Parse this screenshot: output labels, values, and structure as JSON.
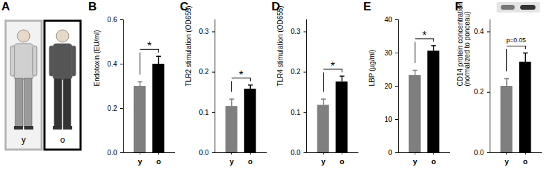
{
  "panel_a": {
    "title": "A",
    "labels": [
      "y",
      "o"
    ]
  },
  "chart_data": [
    {
      "type": "bar",
      "title": "B",
      "ylabel": "Endotoxin (EU/ml)",
      "categories": [
        "y",
        "o"
      ],
      "values": [
        0.3,
        0.4
      ],
      "errors": [
        0.02,
        0.035
      ],
      "colors": [
        "#7f7f7f",
        "#000000"
      ],
      "ylim": [
        0,
        0.6
      ],
      "yticks": [
        {
          "value": 0,
          "label": "0.0"
        },
        0.2,
        0.4,
        0.6
      ],
      "annotations": [
        "*"
      ]
    },
    {
      "type": "bar",
      "title": "C",
      "ylabel": "TLR2 stimulation (OD655)",
      "categories": [
        "y",
        "o"
      ],
      "values": [
        0.115,
        0.158
      ],
      "errors": [
        0.018,
        0.01
      ],
      "colors": [
        "#7f7f7f",
        "#000000"
      ],
      "ylim": [
        0,
        0.33
      ],
      "yticks": [
        {
          "value": 0,
          "label": "0.0"
        },
        0.1,
        0.2,
        0.3
      ],
      "annotations": [
        "*"
      ]
    },
    {
      "type": "bar",
      "title": "D",
      "ylabel": "TLR4 stimulation (OD655)",
      "categories": [
        "y",
        "o"
      ],
      "values": [
        0.118,
        0.176
      ],
      "errors": [
        0.015,
        0.014
      ],
      "colors": [
        "#7f7f7f",
        "#000000"
      ],
      "ylim": [
        0,
        0.33
      ],
      "yticks": [
        {
          "value": 0,
          "label": "0.0"
        },
        0.1,
        0.2,
        0.3
      ],
      "annotations": [
        "*"
      ]
    },
    {
      "type": "bar",
      "title": "E",
      "ylabel": "LBP (µg/ml)",
      "categories": [
        "y",
        "o"
      ],
      "values": [
        23.3,
        30.6
      ],
      "errors": [
        1.5,
        1.6
      ],
      "colors": [
        "#7f7f7f",
        "#000000"
      ],
      "ylim": [
        0,
        40
      ],
      "yticks": [
        0,
        10,
        20,
        30,
        40
      ],
      "annotations": [
        "*"
      ]
    },
    {
      "type": "bar",
      "title": "F",
      "ylabel": "CD14 protein concentration (normalized to ponceau)",
      "categories": [
        "y",
        "o"
      ],
      "values": [
        0.22,
        0.3
      ],
      "errors": [
        0.025,
        0.03
      ],
      "colors": [
        "#7f7f7f",
        "#000000"
      ],
      "ylim": [
        0,
        0.44
      ],
      "yticks": [
        {
          "value": 0,
          "label": "0.0"
        },
        0.2,
        0.4
      ],
      "annotations": [
        "p=0.05"
      ]
    }
  ]
}
